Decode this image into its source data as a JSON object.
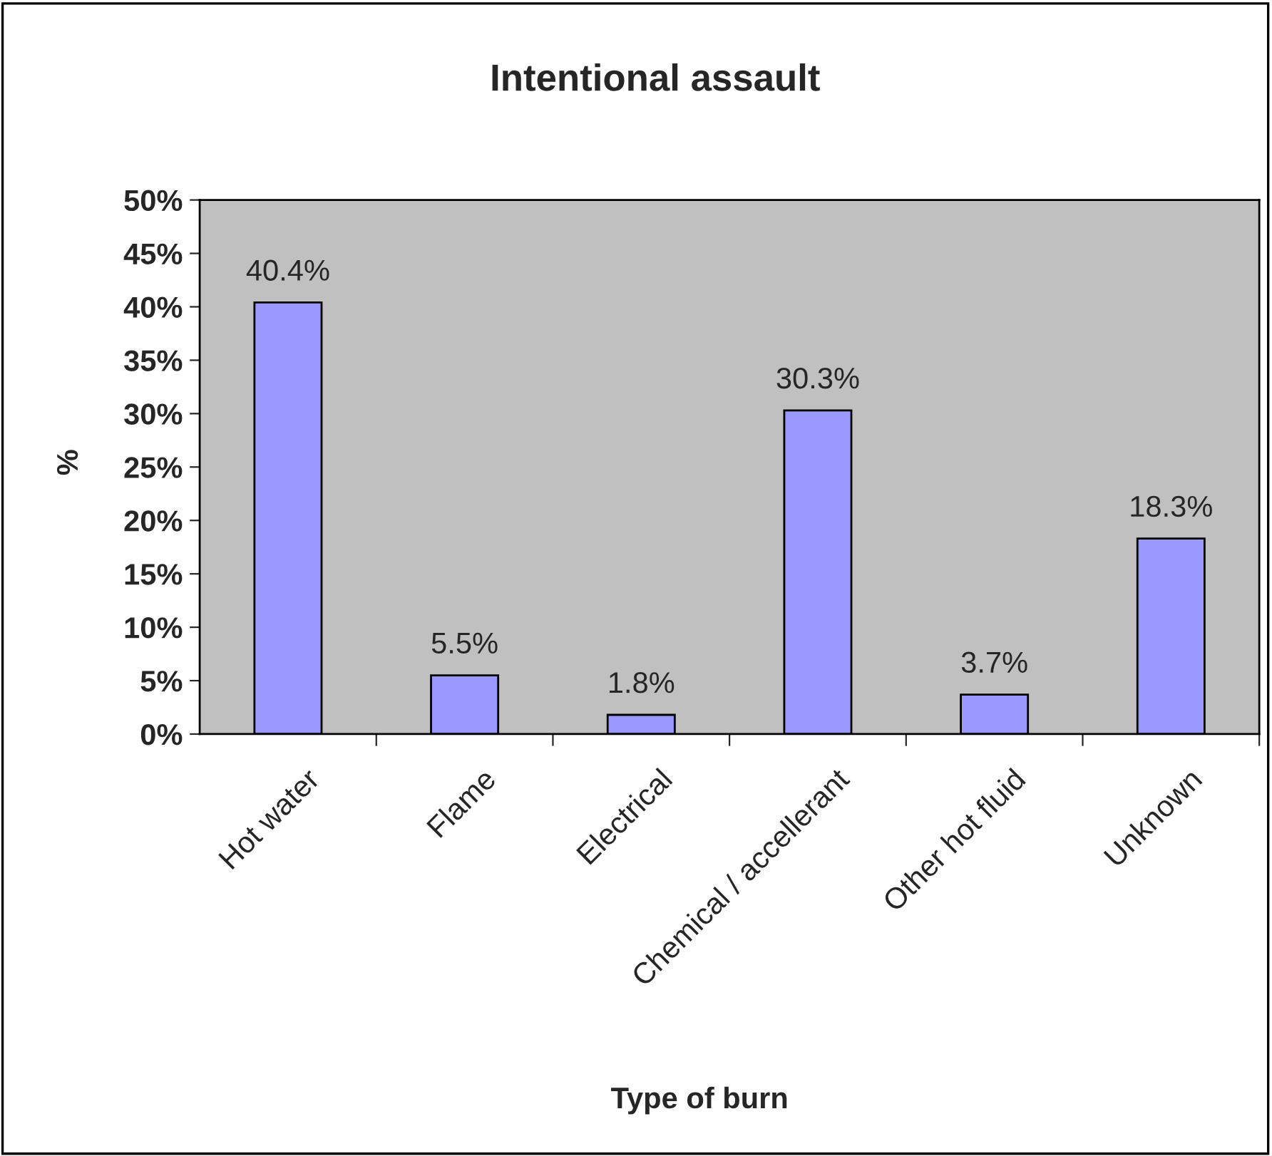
{
  "chart_data": {
    "type": "bar",
    "title": "Intentional assault",
    "xlabel": "Type of burn",
    "ylabel": "%",
    "categories": [
      "Hot water",
      "Flame",
      "Electrical",
      "Chemical / accellerant",
      "Other hot fluid",
      "Unknown"
    ],
    "values": [
      40.4,
      5.5,
      1.8,
      30.3,
      3.7,
      18.3
    ],
    "value_labels": [
      "40.4%",
      "5.5%",
      "1.8%",
      "30.3%",
      "3.7%",
      "18.3%"
    ],
    "color": "#9999ff",
    "ylim": [
      0,
      50
    ],
    "yticks": [
      {
        "value": 0,
        "label": "0%"
      },
      {
        "value": 5,
        "label": "5%"
      },
      {
        "value": 10,
        "label": "10%"
      },
      {
        "value": 15,
        "label": "15%"
      },
      {
        "value": 20,
        "label": "20%"
      },
      {
        "value": 25,
        "label": "25%"
      },
      {
        "value": 30,
        "label": "30%"
      },
      {
        "value": 35,
        "label": "35%"
      },
      {
        "value": 40,
        "label": "40%"
      },
      {
        "value": 45,
        "label": "45%"
      },
      {
        "value": 50,
        "label": "50%"
      }
    ],
    "grid": false,
    "legend": false
  }
}
